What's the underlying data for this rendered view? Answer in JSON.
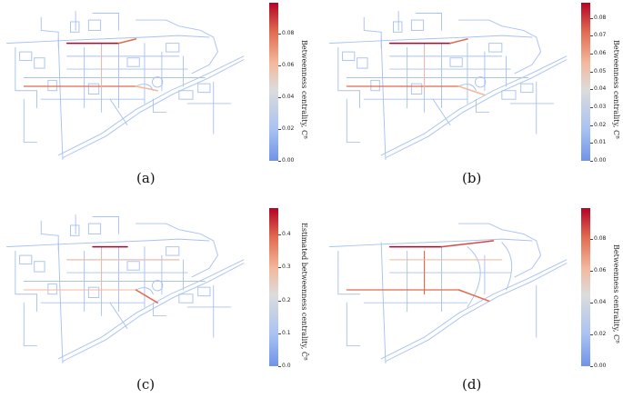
{
  "panels": [
    {
      "caption": "(a)",
      "cbar_label": "Betweenness centrality, Cᴮ",
      "ticks": [
        "0.00",
        "0.02",
        "0.04",
        "0.06",
        "0.08"
      ],
      "max": 0.1
    },
    {
      "caption": "(b)",
      "cbar_label": "Betweenness centrality, Cᴮ",
      "ticks": [
        "0.00",
        "0.01",
        "0.02",
        "0.03",
        "0.04",
        "0.05",
        "0.06",
        "0.07",
        "0.08"
      ],
      "max": 0.088
    },
    {
      "caption": "(c)",
      "cbar_label": "Estimated betweenness centrality, Ĉᴮ",
      "ticks": [
        "0.0",
        "0.1",
        "0.2",
        "0.3",
        "0.4"
      ],
      "max": 0.48
    },
    {
      "caption": "(d)",
      "cbar_label": "Betweenness centrality, Cᴮ",
      "ticks": [
        "0.00",
        "0.02",
        "0.04",
        "0.06",
        "0.08"
      ],
      "max": 0.1
    }
  ],
  "colors": {
    "low": "#a9c2f2",
    "mid": "#f3b89b",
    "high": "#b40426"
  }
}
